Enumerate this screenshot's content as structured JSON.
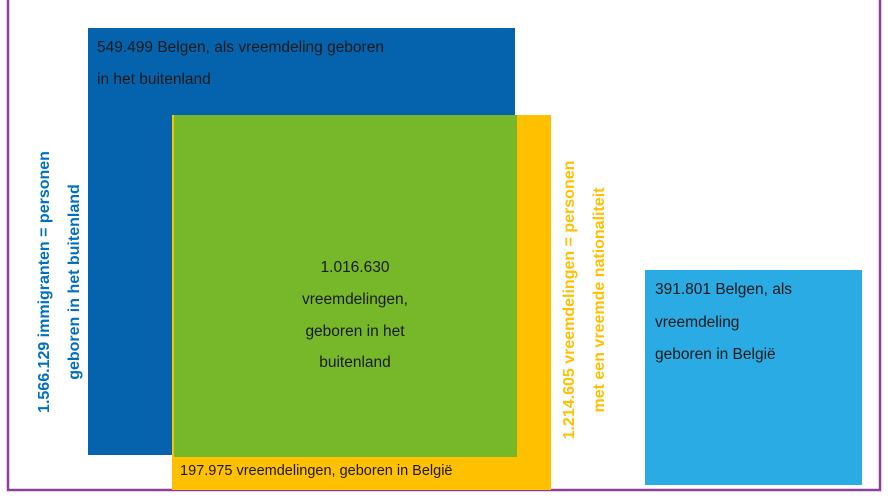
{
  "boxes": [
    {
      "lines": [
        "549.499 Belgen, als vreemdeling geboren",
        "in het buitenland"
      ]
    },
    {
      "lines": [
        "1.016.630",
        "vreemdelingen,",
        "geboren in het",
        "buitenland"
      ]
    },
    {
      "lines": [
        "197.975 vreemdelingen, geboren in België"
      ]
    },
    {
      "lines": [
        "391.801 Belgen, als",
        "vreemdeling",
        "geboren in België"
      ]
    }
  ],
  "labels": [
    {
      "lines": [
        "1.566.129 immigranten = personen",
        "geboren in het buitenland"
      ]
    },
    {
      "lines": [
        "1.214.605 vreemdelingen = personen",
        "met een vreemde nationaliteit"
      ]
    }
  ]
}
